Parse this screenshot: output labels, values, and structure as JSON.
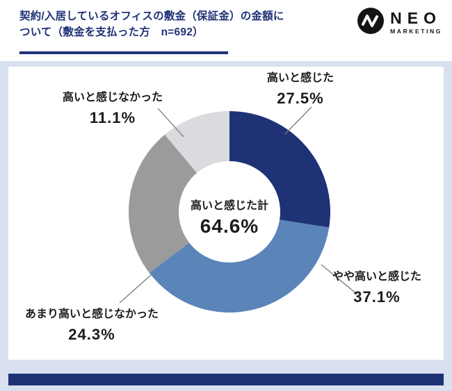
{
  "header": {
    "title_line1": "契約/入居しているオフィスの敷金（保証金）の金額に",
    "title_line2": "ついて（敷金を支払った方　n=692）",
    "logo": {
      "name": "NEO",
      "subtitle": "MARKETING"
    }
  },
  "theme": {
    "bg": "#d9e0ef",
    "accent": "#1f3276",
    "panel": "#ffffff",
    "text": "#1b1b1b"
  },
  "chart_data": {
    "type": "pie",
    "subtype": "donut",
    "title": "契約/入居しているオフィスの敷金（保証金）の金額について（敷金を支払った方　n=692）",
    "sample_size_label": "n=692",
    "start_angle_deg": 0,
    "direction": "clockwise",
    "legend_position": "callout-labels",
    "series": [
      {
        "key": "takai",
        "label": "高いと感じた",
        "value": 27.5,
        "display": "27.5%",
        "color": "#203276"
      },
      {
        "key": "yaya-takai",
        "label": "やや高いと感じた",
        "value": 37.1,
        "display": "37.1%",
        "color": "#5b84b8"
      },
      {
        "key": "amari-takakunai",
        "label": "あまり高いと感じなかった",
        "value": 24.3,
        "display": "24.3%",
        "color": "#9b9b9b"
      },
      {
        "key": "takakunai",
        "label": "高いと感じなかった",
        "value": 11.1,
        "display": "11.1%",
        "color": "#d9dbde"
      }
    ],
    "center": {
      "label": "高いと感じた計",
      "value": 64.6,
      "display": "64.6%"
    }
  }
}
